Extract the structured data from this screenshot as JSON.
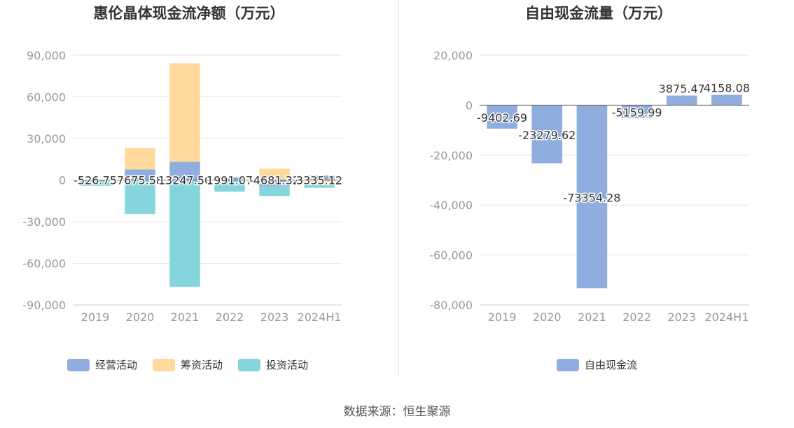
{
  "colors": {
    "operating": "#8fadde",
    "financing": "#ffd99c",
    "investing": "#85d6dc",
    "free_cash_flow": "#8fadde",
    "grid": "#e3e3e3",
    "axis_text": "#999999",
    "title": "#333333"
  },
  "source": "数据来源：恒生聚源",
  "chart_data": [
    {
      "type": "bar",
      "stacked": true,
      "title": "惠伦晶体现金流净额（万元）",
      "categories": [
        "2019",
        "2020",
        "2021",
        "2022",
        "2023",
        "2024H1"
      ],
      "ylim": [
        -90000,
        90000
      ],
      "yticks": [
        90000,
        60000,
        30000,
        0,
        -30000,
        -60000,
        -90000
      ],
      "ytick_labels": [
        "90,000",
        "60,000",
        "30,000",
        "0",
        "-30,000",
        "-60,000",
        "-90,000"
      ],
      "grid": true,
      "legend_position": "bottom",
      "series": [
        {
          "name": "经营活动",
          "color_key": "operating",
          "values": [
            -526.75,
            7675.58,
            13247.5,
            1991.07,
            -4681.32,
            3335.12
          ]
        },
        {
          "name": "筹资活动",
          "color_key": "financing",
          "values": [
            0,
            15500,
            71000,
            0,
            8200,
            -3600
          ]
        },
        {
          "name": "投资活动",
          "color_key": "investing",
          "values": [
            -3700,
            -24500,
            -77000,
            -8300,
            -6800,
            -2000
          ]
        }
      ],
      "data_labels": [
        "-526.75",
        "7675.58",
        "13247.50",
        "1991.07",
        "-4681.32",
        "3335.12"
      ]
    },
    {
      "type": "bar",
      "title": "自由现金流量（万元）",
      "categories": [
        "2019",
        "2020",
        "2021",
        "2022",
        "2023",
        "2024H1"
      ],
      "ylim": [
        -80000,
        20000
      ],
      "yticks": [
        20000,
        0,
        -20000,
        -40000,
        -60000,
        -80000
      ],
      "ytick_labels": [
        "20,000",
        "0",
        "-20,000",
        "-40,000",
        "-60,000",
        "-80,000"
      ],
      "grid": true,
      "legend_position": "bottom",
      "series": [
        {
          "name": "自由现金流",
          "color_key": "free_cash_flow",
          "values": [
            -9402.69,
            -23279.62,
            -73354.28,
            -5159.99,
            3875.47,
            4158.08
          ]
        }
      ],
      "data_labels": [
        "-9402.69",
        "-23279.62",
        "-73354.28",
        "-5159.99",
        "3875.47",
        "4158.08"
      ]
    }
  ]
}
